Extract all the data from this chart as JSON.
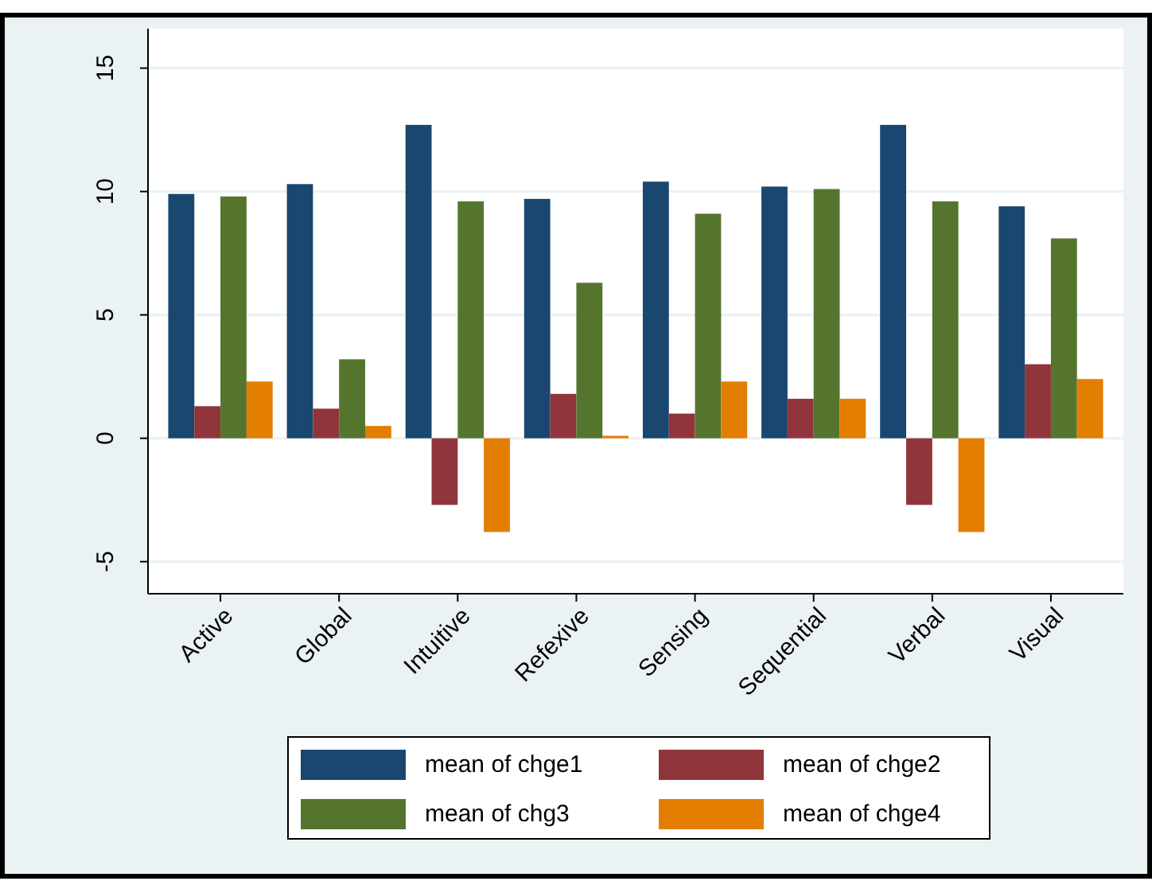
{
  "chart_data": {
    "type": "bar",
    "categories": [
      "Active",
      "Global",
      "Intuitive",
      "Refexive",
      "Sensing",
      "Sequential",
      "Verbal",
      "Visual"
    ],
    "series": [
      {
        "name": "mean of chge1",
        "color": "#1a476f",
        "values": [
          9.9,
          10.3,
          12.7,
          9.7,
          10.4,
          10.2,
          12.7,
          9.4
        ]
      },
      {
        "name": "mean of chge2",
        "color": "#90353b",
        "values": [
          1.3,
          1.2,
          -2.7,
          1.8,
          1.0,
          1.6,
          -2.7,
          3.0
        ]
      },
      {
        "name": "mean of chg3",
        "color": "#55752f",
        "values": [
          9.8,
          3.2,
          9.6,
          6.3,
          9.1,
          10.1,
          9.6,
          8.1
        ]
      },
      {
        "name": "mean of chge4",
        "color": "#e37e00",
        "values": [
          2.3,
          0.5,
          -3.8,
          0.1,
          2.3,
          1.6,
          -3.8,
          2.4
        ]
      }
    ],
    "ylim": [
      -6.3,
      16.6
    ],
    "yticks": [
      -5,
      0,
      5,
      10,
      15
    ],
    "grid": "y",
    "legend": "bottom"
  }
}
